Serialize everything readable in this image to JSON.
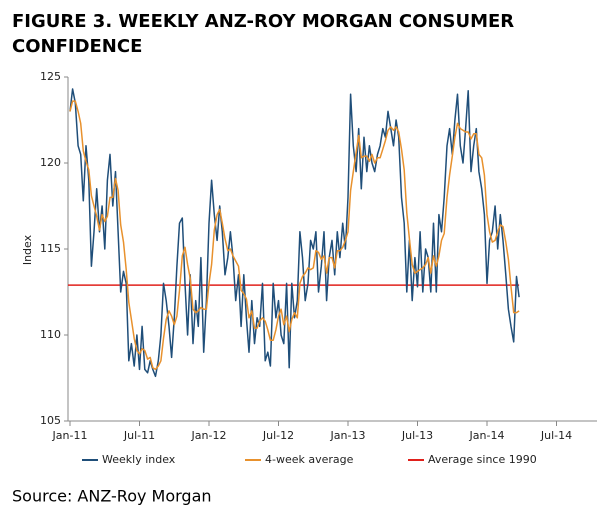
{
  "chart_data": {
    "type": "line",
    "title_lines": [
      "FIGURE 3. WEEKLY ANZ-ROY MORGAN CONSUMER",
      "CONFIDENCE"
    ],
    "y_label": "Index",
    "source": "Source: ANZ-Roy Morgan",
    "xlim": [
      2011,
      2014.8
    ],
    "xticks": [
      {
        "value": 2011,
        "label": "Jan-11"
      },
      {
        "value": 2011.5,
        "label": "Jul-11"
      },
      {
        "value": 2012,
        "label": "Jan-12"
      },
      {
        "value": 2012.5,
        "label": "Jul-12"
      },
      {
        "value": 2013,
        "label": "Jan-13"
      },
      {
        "value": 2013.5,
        "label": "Jul-13"
      },
      {
        "value": 2014,
        "label": "Jan-14"
      },
      {
        "value": 2014.5,
        "label": "Jul-14"
      }
    ],
    "ylim": [
      105,
      125
    ],
    "yticks": [
      105,
      110,
      115,
      120,
      125
    ],
    "x": [
      2011,
      2011.019,
      2011.038,
      2011.058,
      2011.077,
      2011.096,
      2011.115,
      2011.135,
      2011.154,
      2011.173,
      2011.192,
      2011.212,
      2011.231,
      2011.25,
      2011.269,
      2011.288,
      2011.308,
      2011.327,
      2011.346,
      2011.365,
      2011.385,
      2011.404,
      2011.423,
      2011.442,
      2011.462,
      2011.481,
      2011.5,
      2011.519,
      2011.538,
      2011.558,
      2011.577,
      2011.596,
      2011.615,
      2011.635,
      2011.654,
      2011.673,
      2011.692,
      2011.712,
      2011.731,
      2011.75,
      2011.769,
      2011.788,
      2011.808,
      2011.827,
      2011.846,
      2011.865,
      2011.885,
      2011.904,
      2011.923,
      2011.942,
      2011.962,
      2011.981,
      2012,
      2012.019,
      2012.038,
      2012.058,
      2012.077,
      2012.096,
      2012.115,
      2012.135,
      2012.154,
      2012.173,
      2012.192,
      2012.212,
      2012.231,
      2012.25,
      2012.269,
      2012.288,
      2012.308,
      2012.327,
      2012.346,
      2012.365,
      2012.385,
      2012.404,
      2012.423,
      2012.442,
      2012.462,
      2012.481,
      2012.5,
      2012.519,
      2012.538,
      2012.558,
      2012.577,
      2012.596,
      2012.615,
      2012.635,
      2012.654,
      2012.673,
      2012.692,
      2012.712,
      2012.731,
      2012.75,
      2012.769,
      2012.788,
      2012.808,
      2012.827,
      2012.846,
      2012.865,
      2012.885,
      2012.904,
      2012.923,
      2012.942,
      2012.962,
      2012.981,
      2013,
      2013.019,
      2013.038,
      2013.058,
      2013.077,
      2013.096,
      2013.115,
      2013.135,
      2013.154,
      2013.173,
      2013.192,
      2013.212,
      2013.231,
      2013.25,
      2013.269,
      2013.288,
      2013.308,
      2013.327,
      2013.346,
      2013.365,
      2013.385,
      2013.404,
      2013.423,
      2013.442,
      2013.462,
      2013.481,
      2013.5,
      2013.519,
      2013.538,
      2013.558,
      2013.577,
      2013.596,
      2013.615,
      2013.635,
      2013.654,
      2013.673,
      2013.692,
      2013.712,
      2013.731,
      2013.75,
      2013.769,
      2013.788,
      2013.808,
      2013.827,
      2013.846,
      2013.865,
      2013.885,
      2013.904,
      2013.923,
      2013.942,
      2013.962,
      2013.981,
      2014,
      2014.019,
      2014.038,
      2014.058,
      2014.077,
      2014.096,
      2014.115,
      2014.135,
      2014.154,
      2014.173,
      2014.192,
      2014.212,
      2014.231
    ],
    "series": [
      {
        "name": "Weekly index",
        "color": "#1f4e79",
        "values": [
          123,
          124.3,
          123.5,
          121,
          120.5,
          117.8,
          121,
          119,
          114,
          116,
          118.5,
          116,
          117.5,
          115,
          119,
          120.5,
          117.5,
          119.5,
          116,
          112.5,
          113.7,
          113,
          108.5,
          109.5,
          108.2,
          110,
          108,
          110.5,
          108,
          107.8,
          108.5,
          108,
          107.6,
          108.5,
          110,
          113,
          112,
          110.5,
          108.7,
          111,
          114,
          116.5,
          116.8,
          113,
          110,
          113.5,
          109.5,
          112,
          110.5,
          114.5,
          109,
          112,
          116.5,
          119,
          117,
          115.5,
          117.5,
          116,
          113.5,
          114.5,
          116,
          114.5,
          112,
          113.5,
          110.5,
          113.5,
          111,
          109,
          112,
          109.5,
          111,
          110.5,
          113,
          108.5,
          109,
          108.2,
          113,
          111,
          112,
          110,
          109.5,
          113,
          108.1,
          113,
          111,
          112,
          116,
          114.5,
          112,
          113,
          115.5,
          115,
          116,
          112.5,
          114,
          116,
          112,
          114.5,
          115.5,
          113.5,
          116,
          114.5,
          116.5,
          115,
          118,
          124,
          121,
          119.5,
          122,
          118.5,
          121.5,
          119.5,
          121,
          120,
          119.5,
          120.5,
          121,
          122,
          121.5,
          123,
          122,
          121,
          122.5,
          121.5,
          118,
          116.5,
          112.5,
          115.5,
          112,
          114.5,
          112.8,
          116,
          112.5,
          115,
          114.5,
          112.5,
          116.5,
          112.5,
          117,
          116,
          118,
          121,
          122,
          120.5,
          122.5,
          124,
          121,
          120,
          122,
          124.2,
          119.5,
          121,
          122,
          119.5,
          118.5,
          117,
          113,
          115.5,
          116,
          117.5,
          115,
          117,
          115.5,
          113.5,
          111.5,
          110.5,
          109.6,
          113.4,
          112.2
        ]
      },
      {
        "name": "4-week average",
        "color": "#e8912d",
        "values": [
          123,
          123.6,
          123.6,
          123,
          122.3,
          120.7,
          120.1,
          119.6,
          118.1,
          117.5,
          116.9,
          116.1,
          117,
          116.6,
          116.9,
          118,
          118,
          119.1,
          118.4,
          116.4,
          115.4,
          113.8,
          111.9,
          110.9,
          109.8,
          109.1,
          108.9,
          109.2,
          109.1,
          108.6,
          108.7,
          108.1,
          108,
          108.2,
          108.5,
          109.8,
          110.9,
          111.4,
          111.1,
          110.6,
          111.1,
          112.6,
          114.6,
          115.1,
          114.1,
          113.3,
          111.5,
          111.3,
          111.4,
          111.6,
          111.5,
          111.5,
          113,
          114.1,
          116.1,
          117,
          117.3,
          116.5,
          115.6,
          114.9,
          115,
          114.6,
          114.3,
          114,
          112.6,
          112.4,
          112.1,
          111,
          111.4,
          110.4,
          110.4,
          110.8,
          111,
          110.8,
          110.3,
          109.7,
          109.7,
          110.3,
          111.1,
          111.5,
          110.6,
          111.1,
          110.2,
          110.9,
          111.3,
          111,
          113,
          113.4,
          113.6,
          113.9,
          113.8,
          113.9,
          114.9,
          114.8,
          114.4,
          114.6,
          113.6,
          114.5,
          114.5,
          113.9,
          114.9,
          114.9,
          115.1,
          115.5,
          116,
          118.4,
          119.5,
          120.6,
          121.6,
          120.3,
          120.4,
          120.4,
          120.1,
          120.5,
          120,
          120.3,
          120.3,
          120.8,
          121.3,
          121.9,
          122.1,
          121.9,
          122.1,
          121.8,
          120.8,
          119.6,
          117.1,
          115.6,
          114.1,
          113.6,
          113.7,
          113.8,
          113.9,
          114.1,
          114.5,
          113.6,
          114.6,
          114,
          114.6,
          115.5,
          115.9,
          118,
          119.3,
          120.4,
          121.5,
          122.3,
          122,
          121.9,
          121.8,
          121.8,
          121.4,
          121.7,
          121.7,
          120.5,
          120.3,
          119.3,
          117,
          116,
          115.4,
          115.5,
          116,
          116.4,
          116.3,
          115.4,
          114.4,
          112.8,
          111.3,
          111.3,
          111.4
        ]
      }
    ],
    "reference_line": {
      "name": "Average since 1990",
      "color": "#e0201b",
      "value": 112.9
    }
  }
}
